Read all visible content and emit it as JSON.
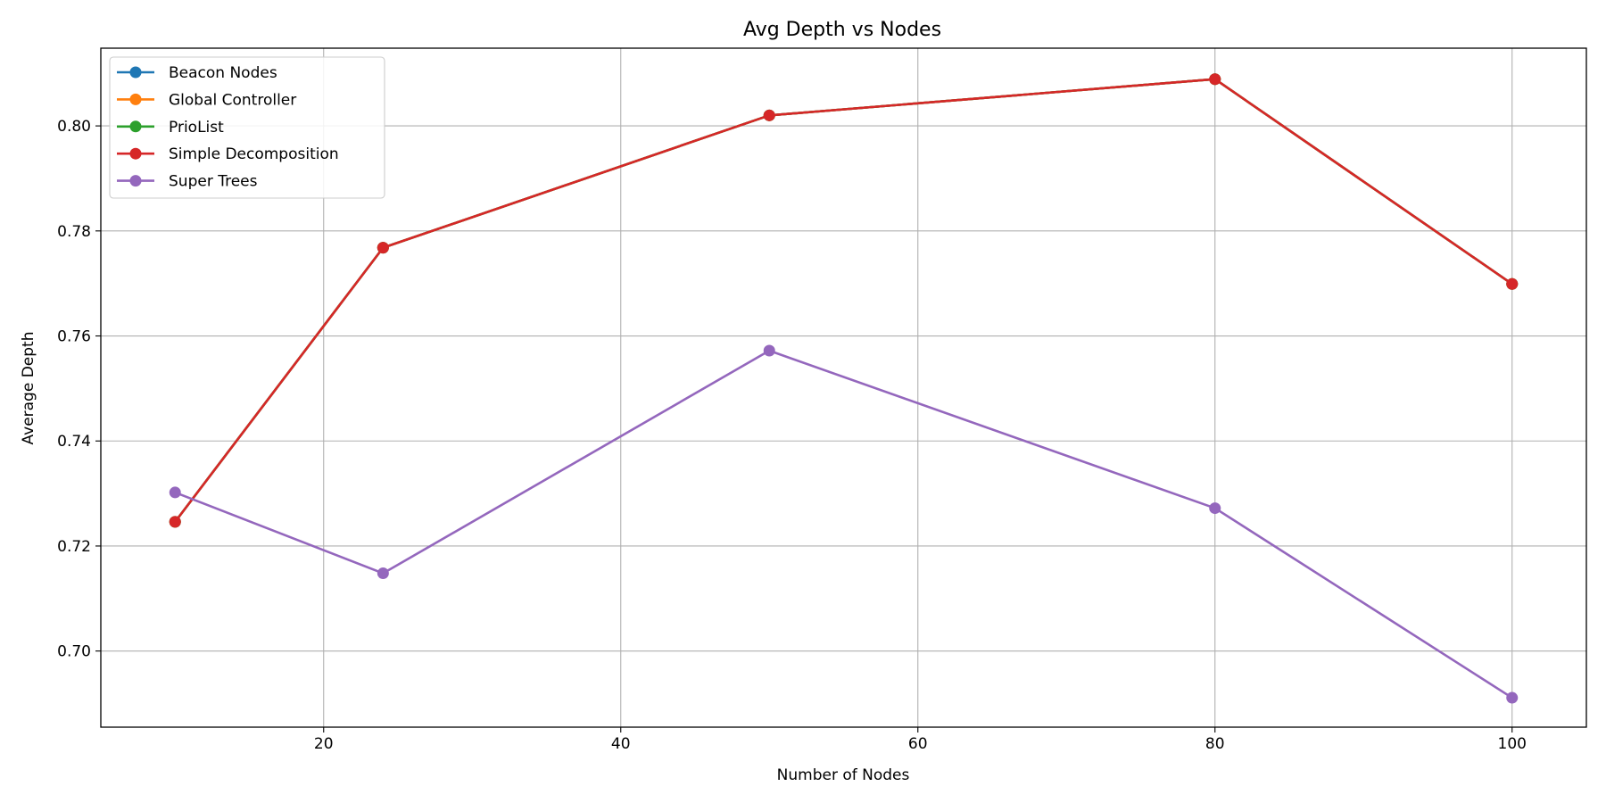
{
  "chart_data": {
    "type": "line",
    "title": "Avg Depth vs Nodes",
    "xlabel": "Number of Nodes",
    "ylabel": "Average Depth",
    "x": [
      10,
      24,
      50,
      80,
      100
    ],
    "xlim": [
      5,
      105
    ],
    "ylim": [
      0.6855,
      0.8148
    ],
    "xticks": [
      20,
      40,
      60,
      80,
      100
    ],
    "yticks": [
      0.7,
      0.72,
      0.74,
      0.76,
      0.78,
      0.8
    ],
    "xtick_labels": [
      "20",
      "40",
      "60",
      "80",
      "100"
    ],
    "ytick_labels": [
      "0.70",
      "0.72",
      "0.74",
      "0.76",
      "0.78",
      "0.80"
    ],
    "grid": true,
    "legend_position": "top-left",
    "series": [
      {
        "name": "Beacon Nodes",
        "color": "#1f77b4",
        "values": [
          0.7246,
          0.7768,
          0.802,
          0.8089,
          0.7699
        ]
      },
      {
        "name": "Global Controller",
        "color": "#ff7f0e",
        "values": [
          0.7246,
          0.7768,
          0.802,
          0.8089,
          0.7699
        ]
      },
      {
        "name": "PrioList",
        "color": "#2ca02c",
        "values": [
          0.7246,
          0.7768,
          0.802,
          0.8089,
          0.7699
        ]
      },
      {
        "name": "Simple Decomposition",
        "color": "#d62728",
        "values": [
          0.7246,
          0.7768,
          0.802,
          0.8089,
          0.7699
        ]
      },
      {
        "name": "Super Trees",
        "color": "#9467bd",
        "values": [
          0.7302,
          0.7148,
          0.7572,
          0.7272,
          0.6911
        ]
      }
    ]
  }
}
